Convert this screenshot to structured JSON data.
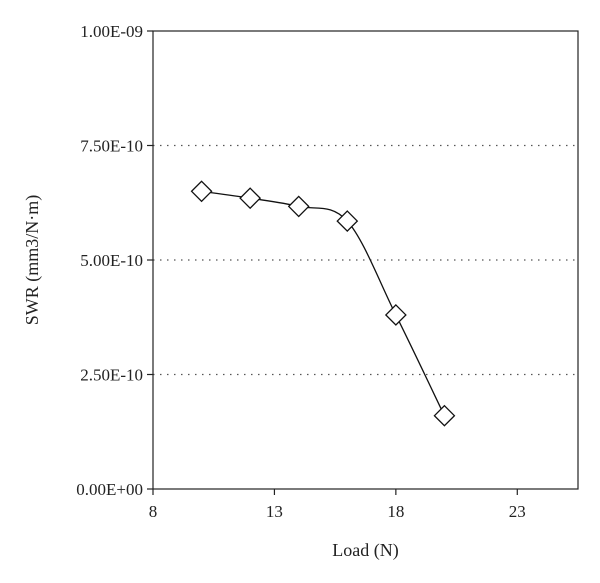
{
  "chart_data": {
    "type": "line",
    "title": "",
    "xlabel": "Load (N)",
    "ylabel": "SWR (mm3/N·m)",
    "xlim": [
      8,
      25.5
    ],
    "ylim": [
      0,
      1e-09
    ],
    "x_ticks": [
      8,
      13,
      18,
      23
    ],
    "x_tick_labels": [
      "8",
      "13",
      "18",
      "23"
    ],
    "y_ticks": [
      0,
      2.5e-10,
      5e-10,
      7.5e-10,
      1e-09
    ],
    "y_tick_labels": [
      "0.00E+00",
      "2.50E-10",
      "5.00E-10",
      "7.50E-10",
      "1.00E-09"
    ],
    "grid": "horizontal dotted",
    "marker": "diamond",
    "series": [
      {
        "x": [
          10,
          12,
          14,
          16,
          18,
          20
        ],
        "values": [
          6.5e-10,
          6.35e-10,
          6.17e-10,
          5.85e-10,
          3.8e-10,
          1.6e-10
        ]
      }
    ]
  }
}
